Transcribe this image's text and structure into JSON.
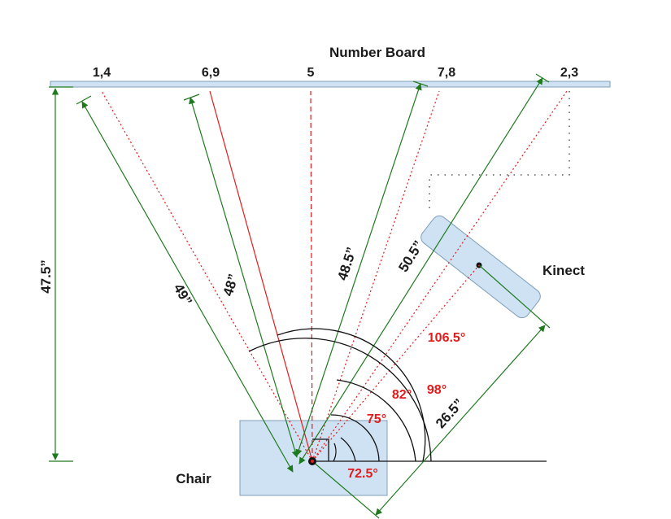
{
  "labels": {
    "number_board": "Number Board",
    "chair": "Chair",
    "kinect": "Kinect"
  },
  "board_numbers": [
    "1,4",
    "6,9",
    "5",
    "7,8",
    "2,3"
  ],
  "distances": {
    "board_height": "47.5”",
    "d_1_4": "49”",
    "d_6_9": "48”",
    "d_7_8": "48.5”",
    "d_2_3": "50.5”",
    "d_kinect": "26.5”"
  },
  "angles": {
    "a1": "106.5°",
    "a2": "98°",
    "a3": "82°",
    "a4": "75°",
    "a5": "72.5°"
  },
  "colors": {
    "board": "#cfe2f3",
    "chair": "#cfe2f3",
    "kinect": "#cfe2f3",
    "red": "#e31b1b",
    "green": "#1f7a1f",
    "black": "#111111"
  }
}
